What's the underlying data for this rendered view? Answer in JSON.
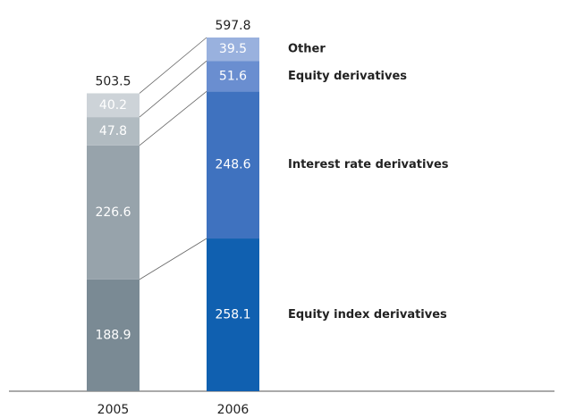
{
  "chart_data": {
    "type": "stacked_bar",
    "categories": [
      "2005",
      "2006"
    ],
    "totals": [
      503.5,
      597.8
    ],
    "series": [
      {
        "name": "Equity index derivatives",
        "colors": [
          "#7a8a94",
          "#1060b0"
        ],
        "values": [
          188.9,
          258.1
        ]
      },
      {
        "name": "Interest rate derivatives",
        "colors": [
          "#97a3ab",
          "#3f72bf"
        ],
        "values": [
          226.6,
          248.6
        ]
      },
      {
        "name": "Equity derivatives",
        "colors": [
          "#b1bbc1",
          "#6a8ed0"
        ],
        "values": [
          47.8,
          51.6
        ]
      },
      {
        "name": "Other",
        "colors": [
          "#cdd3d8",
          "#99b1de"
        ],
        "values": [
          40.2,
          39.5
        ]
      }
    ]
  }
}
